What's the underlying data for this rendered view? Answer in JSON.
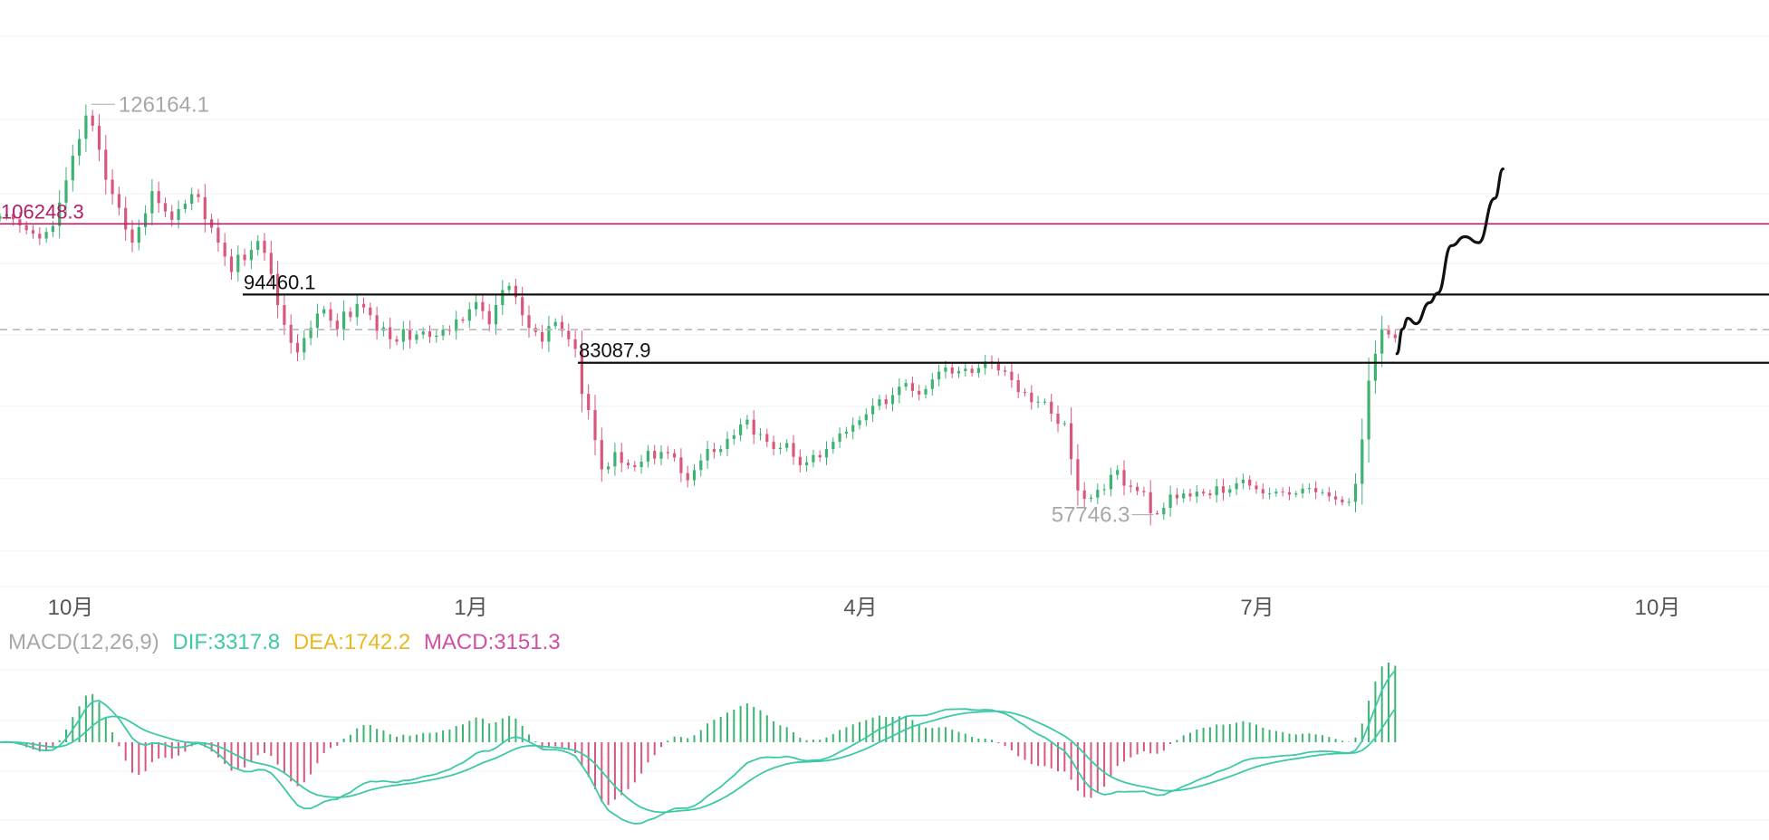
{
  "chart_data": {
    "type": "candlestick",
    "colors": {
      "up": "#3cb371",
      "down": "#d9577b",
      "dif": "#3cc9a6",
      "dea": "#e8b923",
      "macd": "#d14fa2",
      "label_gray": "#a8a8a8",
      "level_magenta": "#b0206a",
      "level_black": "#111111",
      "grid": "#f1f1f1",
      "current": "#b8b8b8"
    },
    "price": {
      "ylim": [
        50000,
        133000
      ],
      "x_ticks": [
        "10月",
        "1月",
        "4月",
        "7月",
        "10月"
      ],
      "high_label": "126164.1",
      "low_label": "57746.3",
      "current_price": 88600,
      "levels": [
        {
          "value": 106248.3,
          "label": "106248.3"
        },
        {
          "value": 94460.1,
          "label": "94460.1"
        },
        {
          "value": 83087.9,
          "label": "83087.9"
        }
      ],
      "closes": [
        107500,
        107900,
        107000,
        106000,
        105200,
        104600,
        103800,
        104900,
        105900,
        109800,
        113500,
        117600,
        120400,
        124300,
        122600,
        118600,
        113600,
        111200,
        108900,
        105300,
        103100,
        105700,
        108000,
        111700,
        109700,
        108300,
        106900,
        108700,
        109600,
        111200,
        110700,
        107000,
        105600,
        103100,
        100800,
        98200,
        101100,
        100200,
        101900,
        103400,
        101400,
        97900,
        92700,
        89400,
        86400,
        84800,
        87200,
        88900,
        91300,
        92000,
        90100,
        88700,
        91600,
        90700,
        92900,
        92300,
        91000,
        88400,
        89000,
        87000,
        86600,
        88700,
        86900,
        87800,
        88300,
        87400,
        87600,
        88600,
        88400,
        90300,
        90100,
        92000,
        93200,
        91700,
        89500,
        92700,
        95200,
        95900,
        94000,
        91000,
        88900,
        88200,
        86600,
        89200,
        89900,
        88400,
        87000,
        85400,
        77900,
        75200,
        70200,
        65300,
        65800,
        68200,
        66400,
        66000,
        65700,
        66600,
        68400,
        67100,
        68200,
        68000,
        67300,
        64700,
        63500,
        65200,
        66800,
        68700,
        68200,
        68700,
        70400,
        71000,
        72800,
        73600,
        71100,
        71200,
        69900,
        68700,
        68900,
        69700,
        67400,
        66000,
        66500,
        67700,
        67300,
        68700,
        69900,
        71300,
        71600,
        72700,
        73500,
        74500,
        75900,
        77000,
        76200,
        77700,
        79100,
        79700,
        78400,
        77800,
        78700,
        80300,
        81600,
        82300,
        81300,
        81700,
        82100,
        81400,
        82200,
        83300,
        83000,
        81800,
        81600,
        80200,
        78200,
        78100,
        76500,
        76600,
        76600,
        74600,
        72900,
        73000,
        67000,
        61800,
        60400,
        60600,
        61900,
        62000,
        64400,
        65200,
        62600,
        62400,
        61700,
        61500,
        58000,
        57800,
        58900,
        61100,
        60500,
        61300,
        60800,
        61600,
        61300,
        61000,
        62500,
        61400,
        62000,
        63000,
        63600,
        62600,
        62000,
        61300,
        61300,
        61600,
        61500,
        61100,
        61300,
        62100,
        62200,
        61500,
        61500,
        60800,
        60300,
        59800,
        59900,
        62900,
        70300,
        80100,
        84600,
        88700,
        87800,
        87200
      ]
    },
    "macd": {
      "label": "MACD(12,26,9)",
      "dif_label": "DIF:3317.8",
      "dea_label": "DEA:1742.2",
      "macd_label": "MACD:3151.3",
      "params": [
        12,
        26,
        9
      ]
    },
    "projection": {
      "color": "#111111",
      "points": [
        [
          88700,
          1
        ],
        [
          90500,
          2
        ],
        [
          89600,
          3.5
        ],
        [
          93100,
          6
        ],
        [
          94700,
          7.5
        ],
        [
          102600,
          10
        ],
        [
          104100,
          12.5
        ],
        [
          103100,
          15
        ],
        [
          110500,
          18
        ],
        [
          115400,
          19.5
        ]
      ]
    }
  }
}
